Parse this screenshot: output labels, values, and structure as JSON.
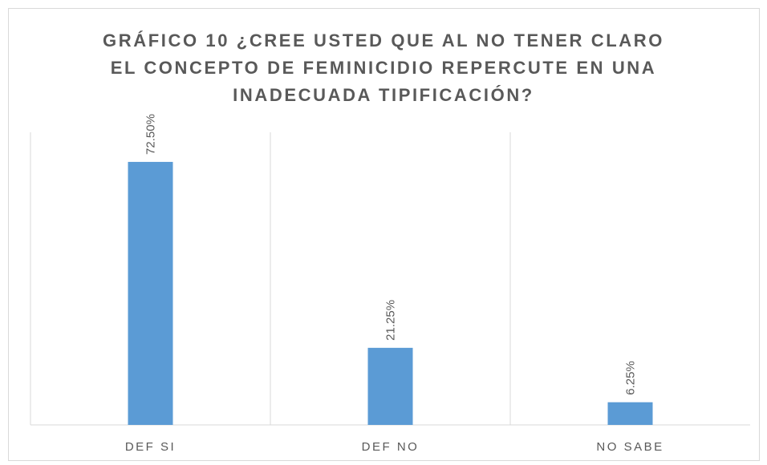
{
  "chart_data": {
    "type": "bar",
    "title": [
      "GRÁFICO 10 ¿CREE USTED QUE AL NO TENER CLARO",
      "EL CONCEPTO DE FEMINICIDIO REPERCUTE EN UNA",
      "INADECUADA TIPIFICACIÓN?"
    ],
    "categories": [
      "DEF SI",
      "DEF NO",
      "NO SABE"
    ],
    "values": [
      72.5,
      21.25,
      6.25
    ],
    "value_labels": [
      "72.50%",
      "21.25%",
      "6.25%"
    ],
    "color": "#5b9bd5",
    "ylim": [
      0,
      80
    ]
  }
}
